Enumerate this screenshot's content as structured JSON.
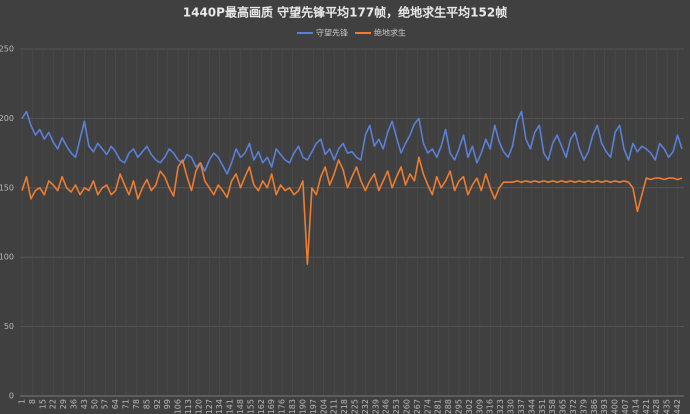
{
  "chart_data": {
    "type": "line",
    "title": "1440P最高画质 守望先锋平均177帧，绝地求生平均152帧",
    "x": [
      1,
      4,
      7,
      10,
      13,
      16,
      19,
      22,
      25,
      28,
      31,
      34,
      37,
      40,
      43,
      46,
      49,
      52,
      55,
      58,
      61,
      64,
      67,
      70,
      73,
      76,
      79,
      82,
      85,
      88,
      91,
      94,
      97,
      100,
      103,
      106,
      109,
      112,
      115,
      118,
      121,
      124,
      127,
      130,
      133,
      136,
      139,
      142,
      145,
      148,
      151,
      154,
      157,
      160,
      163,
      166,
      169,
      172,
      175,
      178,
      181,
      184,
      187,
      190,
      193,
      196,
      199,
      202,
      205,
      208,
      211,
      214,
      217,
      220,
      223,
      226,
      229,
      232,
      235,
      238,
      241,
      244,
      247,
      250,
      253,
      256,
      259,
      262,
      265,
      268,
      271,
      274,
      277,
      280,
      283,
      286,
      289,
      292,
      295,
      298,
      301,
      304,
      307,
      310,
      313,
      316,
      319,
      322,
      325,
      328,
      331,
      334,
      337,
      340,
      343,
      346,
      349,
      352,
      355,
      358,
      361,
      364,
      367,
      370,
      373,
      376,
      379,
      382,
      385,
      388,
      391,
      394,
      397,
      400,
      403,
      406,
      409,
      412,
      415,
      418,
      421,
      424,
      427,
      430,
      433,
      436,
      439,
      442,
      445
    ],
    "series": [
      {
        "name": "守望先锋",
        "color": "#5a80d8",
        "values": [
          200,
          205,
          195,
          188,
          192,
          185,
          190,
          183,
          178,
          186,
          180,
          175,
          172,
          185,
          198,
          180,
          176,
          182,
          178,
          174,
          180,
          176,
          170,
          168,
          175,
          178,
          172,
          176,
          180,
          174,
          170,
          168,
          172,
          178,
          175,
          170,
          168,
          174,
          172,
          165,
          168,
          162,
          170,
          175,
          172,
          166,
          160,
          168,
          178,
          172,
          175,
          182,
          170,
          176,
          168,
          172,
          165,
          178,
          174,
          170,
          168,
          175,
          180,
          172,
          170,
          176,
          182,
          185,
          174,
          178,
          170,
          178,
          182,
          175,
          176,
          172,
          170,
          188,
          195,
          180,
          185,
          178,
          190,
          198,
          186,
          175,
          182,
          188,
          196,
          200,
          182,
          175,
          178,
          172,
          180,
          192,
          175,
          170,
          178,
          188,
          172,
          180,
          168,
          175,
          185,
          178,
          195,
          183,
          176,
          172,
          180,
          198,
          205,
          185,
          178,
          190,
          195,
          175,
          170,
          182,
          188,
          180,
          172,
          185,
          190,
          178,
          170,
          176,
          188,
          195,
          182,
          176,
          172,
          190,
          195,
          178,
          170,
          182,
          176,
          180,
          178,
          175,
          170,
          182,
          178,
          172,
          176,
          188,
          178
        ]
      },
      {
        "name": "绝地求生",
        "color": "#ed7d31",
        "values": [
          148,
          158,
          142,
          148,
          150,
          145,
          155,
          152,
          148,
          158,
          150,
          147,
          152,
          145,
          150,
          148,
          155,
          145,
          150,
          152,
          145,
          148,
          160,
          152,
          145,
          155,
          142,
          150,
          156,
          148,
          152,
          162,
          158,
          150,
          144,
          165,
          170,
          158,
          148,
          162,
          168,
          155,
          150,
          145,
          152,
          148,
          143,
          155,
          160,
          150,
          158,
          165,
          152,
          148,
          155,
          150,
          160,
          145,
          152,
          148,
          150,
          145,
          148,
          155,
          95,
          150,
          145,
          158,
          165,
          152,
          160,
          170,
          163,
          150,
          158,
          165,
          155,
          148,
          155,
          160,
          148,
          155,
          162,
          150,
          158,
          165,
          152,
          160,
          155,
          172,
          160,
          152,
          145,
          158,
          150,
          155,
          162,
          148,
          155,
          158,
          145,
          152,
          157,
          148,
          160,
          150,
          142,
          150,
          154,
          154,
          154,
          155,
          154,
          155,
          154,
          155,
          154,
          155,
          154,
          155,
          154,
          155,
          154,
          155,
          154,
          155,
          154,
          155,
          154,
          155,
          154,
          155,
          154,
          155,
          154,
          155,
          154,
          150,
          133,
          145,
          157,
          156,
          157,
          157,
          156,
          157,
          157,
          156,
          157
        ]
      }
    ],
    "xlim": [
      1,
      445
    ],
    "xticks": [
      1,
      8,
      15,
      22,
      29,
      36,
      43,
      50,
      57,
      64,
      71,
      78,
      85,
      92,
      99,
      106,
      113,
      120,
      127,
      134,
      141,
      148,
      155,
      162,
      169,
      176,
      183,
      190,
      197,
      204,
      211,
      218,
      225,
      232,
      239,
      246,
      253,
      260,
      267,
      274,
      281,
      288,
      295,
      302,
      309,
      316,
      323,
      330,
      337,
      344,
      351,
      358,
      365,
      372,
      379,
      386,
      393,
      400,
      407,
      414,
      421,
      428,
      435,
      442
    ],
    "ylim": [
      0,
      250
    ],
    "yticks": [
      0,
      50,
      100,
      150,
      200,
      250
    ],
    "grid": true,
    "legend": "top"
  }
}
